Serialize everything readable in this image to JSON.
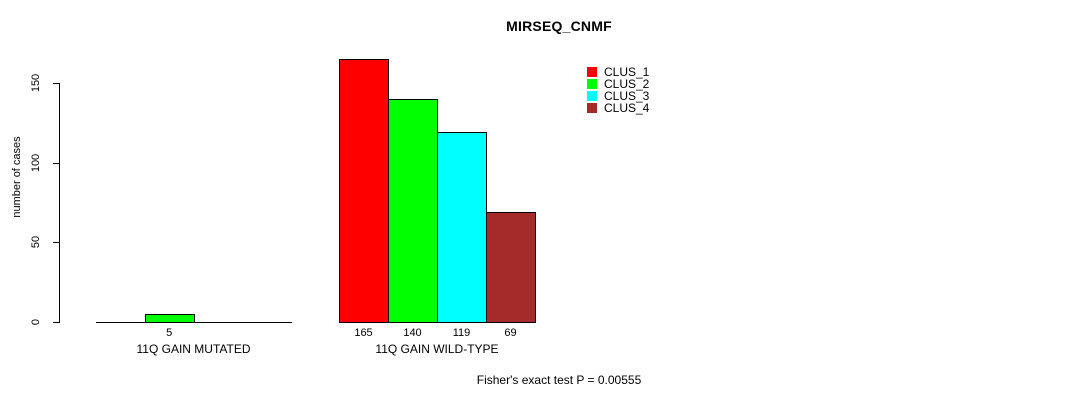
{
  "chart_data": {
    "type": "bar",
    "title": "MIRSEQ_CNMF",
    "ylabel": "number of cases",
    "xlabel": "",
    "categories": [
      "11Q GAIN MUTATED",
      "11Q GAIN WILD-TYPE"
    ],
    "series": [
      {
        "name": "CLUS_1",
        "color": "#FF0000",
        "values": [
          0,
          165
        ]
      },
      {
        "name": "CLUS_2",
        "color": "#00FF00",
        "values": [
          5,
          140
        ]
      },
      {
        "name": "CLUS_3",
        "color": "#00FFFF",
        "values": [
          0,
          119
        ]
      },
      {
        "name": "CLUS_4",
        "color": "#A52A2A",
        "values": [
          0,
          69
        ]
      }
    ],
    "yticks": [
      0,
      50,
      100,
      150
    ],
    "ylim": [
      0,
      169
    ],
    "grid": false,
    "legend_position": "top-right",
    "bar_labels_shown": [
      "5",
      "165",
      "140",
      "119",
      "69"
    ],
    "annotation": "Fisher's exact test P = 0.00555"
  }
}
